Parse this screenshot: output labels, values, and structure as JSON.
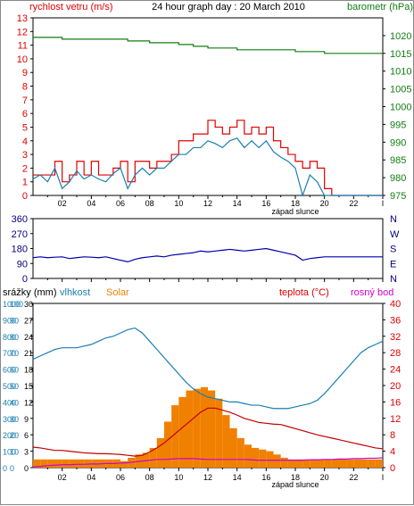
{
  "header": {
    "left_title": "rychlost vetru (m/s)",
    "center_title": "24 hour graph day : 20 March 2010",
    "right_title": "barometr (hPa)"
  },
  "colors": {
    "frame": "#000000",
    "wind_gust": "#e00000",
    "wind_avg": "#1a7fb0",
    "barometer": "#137d13",
    "direction": "#0000b0",
    "humidity": "#1a7fb0",
    "solar": "#f08000",
    "temperature": "#c00000",
    "dew_point": "#d000d0",
    "rain": "#f08000",
    "axis_red": "#e00000",
    "axis_blue": "#1a7fb0",
    "axis_green": "#137d13",
    "axis_navy": "#000080"
  },
  "x_axis": {
    "hour_labels": [
      "02",
      "04",
      "06",
      "08",
      "10",
      "12",
      "14",
      "16",
      "18",
      "20",
      "22",
      "I"
    ],
    "sunset_label": "západ slunce"
  },
  "chart_data": [
    {
      "type": "line",
      "id": "wind",
      "ylabel_left": "rychlost vetru (m/s)",
      "ylabel_right": "barometr (hPa)",
      "ylim": [
        0,
        13
      ],
      "y2lim": [
        975,
        1025
      ],
      "yticks": [
        0,
        1,
        2,
        3,
        4,
        5,
        6,
        7,
        8,
        9,
        10,
        11,
        12,
        13
      ],
      "y2ticks": [
        975,
        980,
        985,
        990,
        995,
        1000,
        1005,
        1010,
        1015,
        1020
      ],
      "x": [
        0,
        0.5,
        1,
        1.5,
        2,
        2.5,
        3,
        3.5,
        4,
        4.5,
        5,
        5.5,
        6,
        6.5,
        7,
        7.5,
        8,
        8.5,
        9,
        9.5,
        10,
        10.5,
        11,
        11.5,
        12,
        12.5,
        13,
        13.5,
        14,
        14.5,
        15,
        15.5,
        16,
        16.5,
        17,
        17.5,
        18,
        18.5,
        19,
        19.5,
        20,
        20.5,
        21,
        21.5,
        22,
        22.5,
        23,
        23.5,
        24
      ],
      "series": [
        {
          "name": "gust",
          "values": [
            1.5,
            1.5,
            1.5,
            2.5,
            1.0,
            1.5,
            2.5,
            1.5,
            2.5,
            1.5,
            1.5,
            2.0,
            2.5,
            1.0,
            2.5,
            2.5,
            2.0,
            2.5,
            2.5,
            3.0,
            4.0,
            4.0,
            4.5,
            4.5,
            5.5,
            5.0,
            4.5,
            5.0,
            5.5,
            4.5,
            5.0,
            4.5,
            5.0,
            4.0,
            3.5,
            3.0,
            2.5,
            2.0,
            2.5,
            2.0,
            0.5,
            0,
            0,
            0,
            0,
            0,
            0,
            0,
            0
          ]
        },
        {
          "name": "average",
          "values": [
            1.2,
            1.5,
            1.0,
            2.0,
            0.5,
            1.0,
            1.8,
            1.2,
            1.5,
            1.2,
            1.0,
            1.6,
            2.0,
            0.5,
            1.5,
            2.0,
            1.5,
            2.0,
            2.0,
            2.5,
            3.0,
            3.0,
            3.5,
            3.5,
            4.0,
            3.8,
            3.5,
            4.0,
            4.2,
            3.5,
            4.0,
            3.5,
            4.0,
            3.2,
            2.8,
            2.5,
            2.0,
            0,
            1.5,
            1.0,
            0,
            0,
            0,
            0,
            0,
            0,
            0,
            0,
            0
          ]
        },
        {
          "name": "barometer",
          "values": [
            1019.5,
            1019.5,
            1019.5,
            1019.5,
            1019.0,
            1019.0,
            1019.0,
            1019.0,
            1019.0,
            1019.0,
            1019.0,
            1019.0,
            1019.0,
            1018.5,
            1018.5,
            1018.5,
            1018.0,
            1018.0,
            1018.0,
            1018.0,
            1017.5,
            1017.5,
            1017.0,
            1017.0,
            1016.5,
            1016.5,
            1016.5,
            1016.5,
            1016.0,
            1016.0,
            1016.0,
            1016.0,
            1016.0,
            1016.0,
            1016.0,
            1016.0,
            1015.5,
            1015.5,
            1015.5,
            1015.5,
            1015.0,
            1015.0,
            1015.0,
            1015.0,
            1015.0,
            1015.0,
            1015.0,
            1015.0,
            1015.0
          ]
        }
      ]
    },
    {
      "type": "line",
      "id": "direction",
      "ylim": [
        0,
        360
      ],
      "yticks": [
        0,
        90,
        180,
        270,
        360
      ],
      "y2ticks": [
        "N",
        "E",
        "S",
        "W",
        "N"
      ],
      "x": [
        0,
        0.5,
        1,
        1.5,
        2,
        2.5,
        3,
        3.5,
        4,
        4.5,
        5,
        5.5,
        6,
        6.5,
        7,
        7.5,
        8,
        8.5,
        9,
        9.5,
        10,
        10.5,
        11,
        11.5,
        12,
        12.5,
        13,
        13.5,
        14,
        14.5,
        15,
        15.5,
        16,
        16.5,
        17,
        17.5,
        18,
        18.5,
        19,
        19.5,
        20,
        20.5,
        21,
        21.5,
        22,
        22.5,
        23,
        23.5,
        24
      ],
      "series": [
        {
          "name": "direction",
          "values": [
            125,
            130,
            125,
            128,
            130,
            120,
            125,
            130,
            128,
            125,
            130,
            120,
            110,
            100,
            115,
            125,
            130,
            135,
            130,
            140,
            145,
            150,
            155,
            165,
            160,
            165,
            170,
            175,
            170,
            165,
            170,
            175,
            180,
            170,
            160,
            150,
            140,
            110,
            120,
            125,
            130,
            130,
            130,
            130,
            130,
            130,
            130,
            130,
            130
          ]
        }
      ]
    },
    {
      "type": "line",
      "id": "climate",
      "legend": [
        "srážky (mm)",
        "vlhkost",
        "Solar",
        "teplota (°C)",
        "rosný bod"
      ],
      "rain_ticks": [
        0,
        3,
        6,
        9,
        12,
        15,
        18,
        21,
        24,
        27,
        30
      ],
      "humidity_ticks": [
        0,
        10,
        20,
        30,
        40,
        50,
        60,
        70,
        80,
        90,
        100
      ],
      "solar_ticks": [
        0,
        100,
        200,
        300,
        400,
        500,
        600,
        700,
        800,
        900,
        1000
      ],
      "temp_ticks": [
        0,
        4,
        8,
        12,
        16,
        20,
        24,
        28,
        32,
        36,
        40
      ],
      "temp_lim": [
        0,
        40
      ],
      "humidity_lim": [
        0,
        100
      ],
      "solar_lim": [
        0,
        1000
      ],
      "x": [
        0,
        0.5,
        1,
        1.5,
        2,
        2.5,
        3,
        3.5,
        4,
        4.5,
        5,
        5.5,
        6,
        6.5,
        7,
        7.5,
        8,
        8.5,
        9,
        9.5,
        10,
        10.5,
        11,
        11.5,
        12,
        12.5,
        13,
        13.5,
        14,
        14.5,
        15,
        15.5,
        16,
        16.5,
        17,
        17.5,
        18,
        18.5,
        19,
        19.5,
        20,
        20.5,
        21,
        21.5,
        22,
        22.5,
        23,
        23.5,
        24
      ],
      "series": [
        {
          "name": "vlhkost",
          "values": [
            66,
            68,
            70,
            72,
            73,
            73,
            73,
            74,
            75,
            77,
            79,
            80,
            82,
            84,
            85,
            82,
            77,
            72,
            67,
            62,
            57,
            52,
            48,
            45,
            43,
            42,
            41,
            40,
            40,
            39,
            38,
            38,
            37,
            36,
            36,
            36,
            37,
            38,
            39,
            41,
            45,
            50,
            55,
            60,
            65,
            70,
            73,
            75,
            77
          ]
        },
        {
          "name": "Solar",
          "values": [
            50,
            50,
            50,
            50,
            50,
            50,
            50,
            50,
            50,
            50,
            50,
            50,
            40,
            60,
            80,
            90,
            120,
            180,
            280,
            380,
            430,
            470,
            480,
            490,
            470,
            420,
            320,
            240,
            180,
            140,
            120,
            110,
            100,
            80,
            60,
            50,
            50,
            50,
            50,
            50,
            50,
            50,
            50,
            50,
            50,
            50,
            50,
            50,
            50
          ]
        },
        {
          "name": "teplota",
          "values": [
            5.0,
            4.8,
            4.5,
            4.2,
            4.2,
            4.0,
            3.8,
            3.6,
            3.5,
            3.4,
            3.4,
            3.3,
            3.2,
            3.0,
            2.8,
            3.0,
            3.8,
            4.8,
            6.0,
            7.5,
            9.0,
            10.5,
            12.0,
            13.5,
            14.5,
            14.5,
            14.0,
            13.5,
            12.8,
            12.0,
            11.5,
            11.0,
            10.8,
            10.6,
            10.5,
            10.0,
            9.5,
            9.0,
            8.5,
            8.0,
            7.6,
            7.2,
            6.8,
            6.4,
            6.0,
            5.6,
            5.2,
            4.8,
            4.6
          ]
        },
        {
          "name": "rosný bod",
          "values": [
            0.2,
            0.3,
            0.5,
            0.6,
            0.7,
            0.7,
            0.8,
            0.8,
            0.9,
            0.9,
            1.0,
            1.0,
            1.1,
            1.2,
            1.4,
            1.6,
            1.8,
            2.0,
            2.0,
            2.1,
            2.2,
            2.2,
            2.2,
            2.1,
            2.0,
            2.0,
            2.0,
            2.0,
            2.0,
            2.0,
            1.9,
            1.8,
            1.8,
            1.8,
            1.8,
            1.8,
            1.8,
            1.8,
            1.9,
            1.9,
            2.0,
            2.0,
            2.1,
            2.1,
            2.2,
            2.2,
            2.3,
            2.3,
            2.4
          ]
        }
      ]
    }
  ]
}
